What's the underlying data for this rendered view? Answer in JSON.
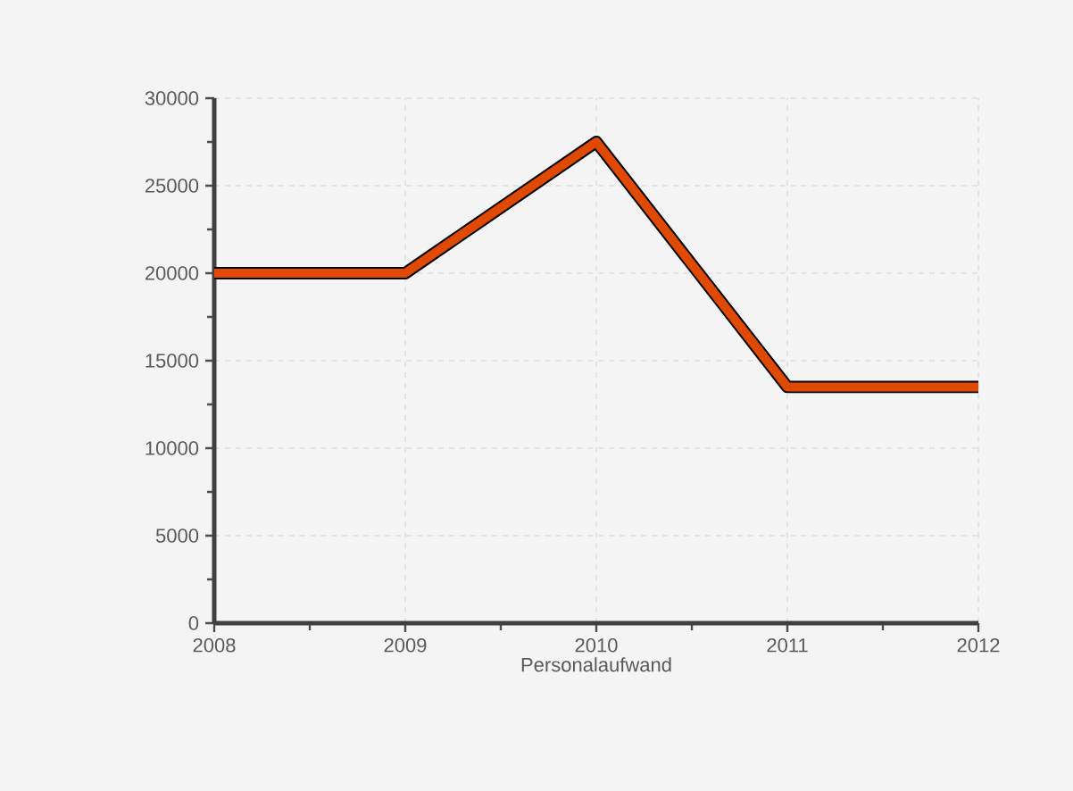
{
  "chart_data": {
    "type": "line",
    "xlabel": "Personalaufwand",
    "x": [
      2008,
      2009,
      2010,
      2011,
      2012
    ],
    "series": [
      {
        "color": "#e04a00",
        "values": [
          20000,
          20000,
          27500,
          13500,
          13500
        ]
      }
    ],
    "xlim": [
      2008,
      2012
    ],
    "xticks": [
      2008,
      2009,
      2010,
      2011,
      2012
    ],
    "ylim": [
      0,
      30000
    ],
    "yticks": [
      0,
      5000,
      10000,
      15000,
      20000,
      25000,
      30000
    ],
    "grid": true,
    "marker": "none",
    "line_style": "solid"
  }
}
